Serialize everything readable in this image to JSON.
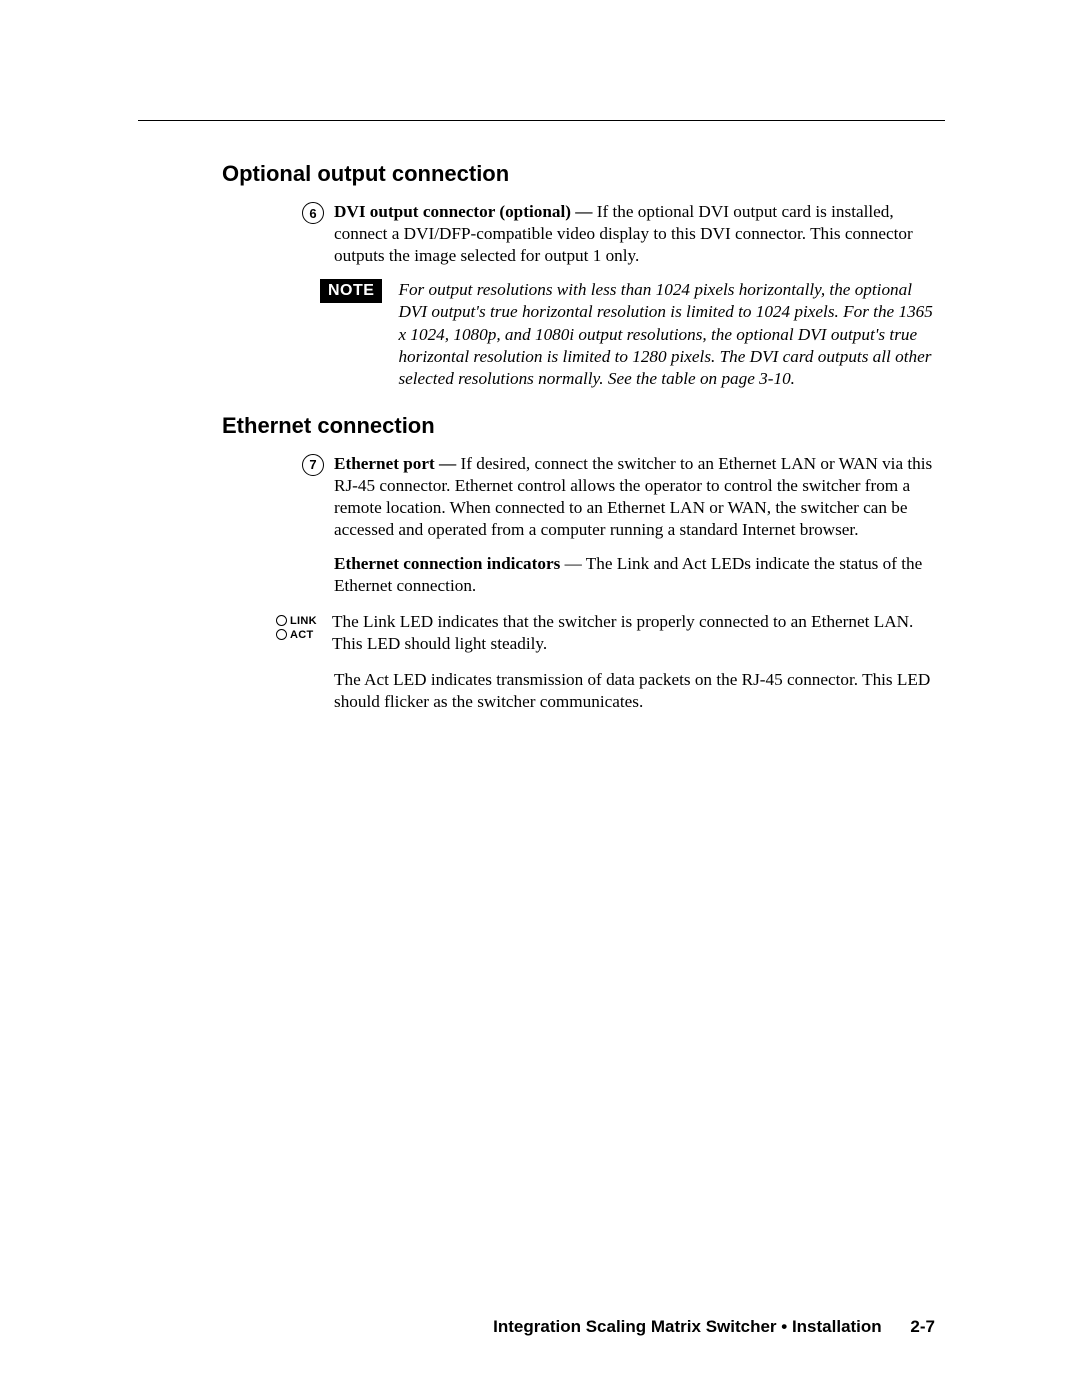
{
  "section1": {
    "heading": "Optional output connection",
    "item_num": "6",
    "item_label": "DVI output connector (optional) — ",
    "item_text": "If the optional DVI output card is installed, connect a DVI/DFP-compatible video display to this DVI connector.  This connector outputs the image selected for output 1 only.",
    "note_badge": "NOTE",
    "note_text": "For output resolutions with less than 1024 pixels horizontally, the optional DVI output's true horizontal resolution is limited to 1024 pixels. For the 1365 x 1024, 1080p, and 1080i output resolutions, the optional DVI output's true horizontal resolution is limited to 1280 pixels. The DVI card outputs all other selected resolutions normally.  See the table on page 3-10."
  },
  "section2": {
    "heading": "Ethernet connection",
    "item_num": "7",
    "item_label": "Ethernet port — ",
    "item_text": "If desired, connect the switcher to an Ethernet LAN or WAN via this RJ-45 connector.  Ethernet control allows the operator to control the switcher from a remote location.  When connected to an Ethernet LAN or WAN, the switcher can be accessed and operated from a computer running a standard Internet browser.",
    "indicator_label": "Ethernet connection indicators",
    "indicator_text": " — The Link and Act LEDs indicate the status of the Ethernet connection.",
    "led1_label": "LINK",
    "led2_label": "ACT",
    "link_text": "The Link LED indicates that the switcher is properly connected to an Ethernet LAN.  This LED should light steadily.",
    "act_text": "The Act LED indicates transmission of data packets on the RJ-45 connector.  This LED should flicker as the switcher communicates."
  },
  "footer": {
    "title": "Integration Scaling Matrix Switcher • Installation",
    "page": "2-7"
  }
}
